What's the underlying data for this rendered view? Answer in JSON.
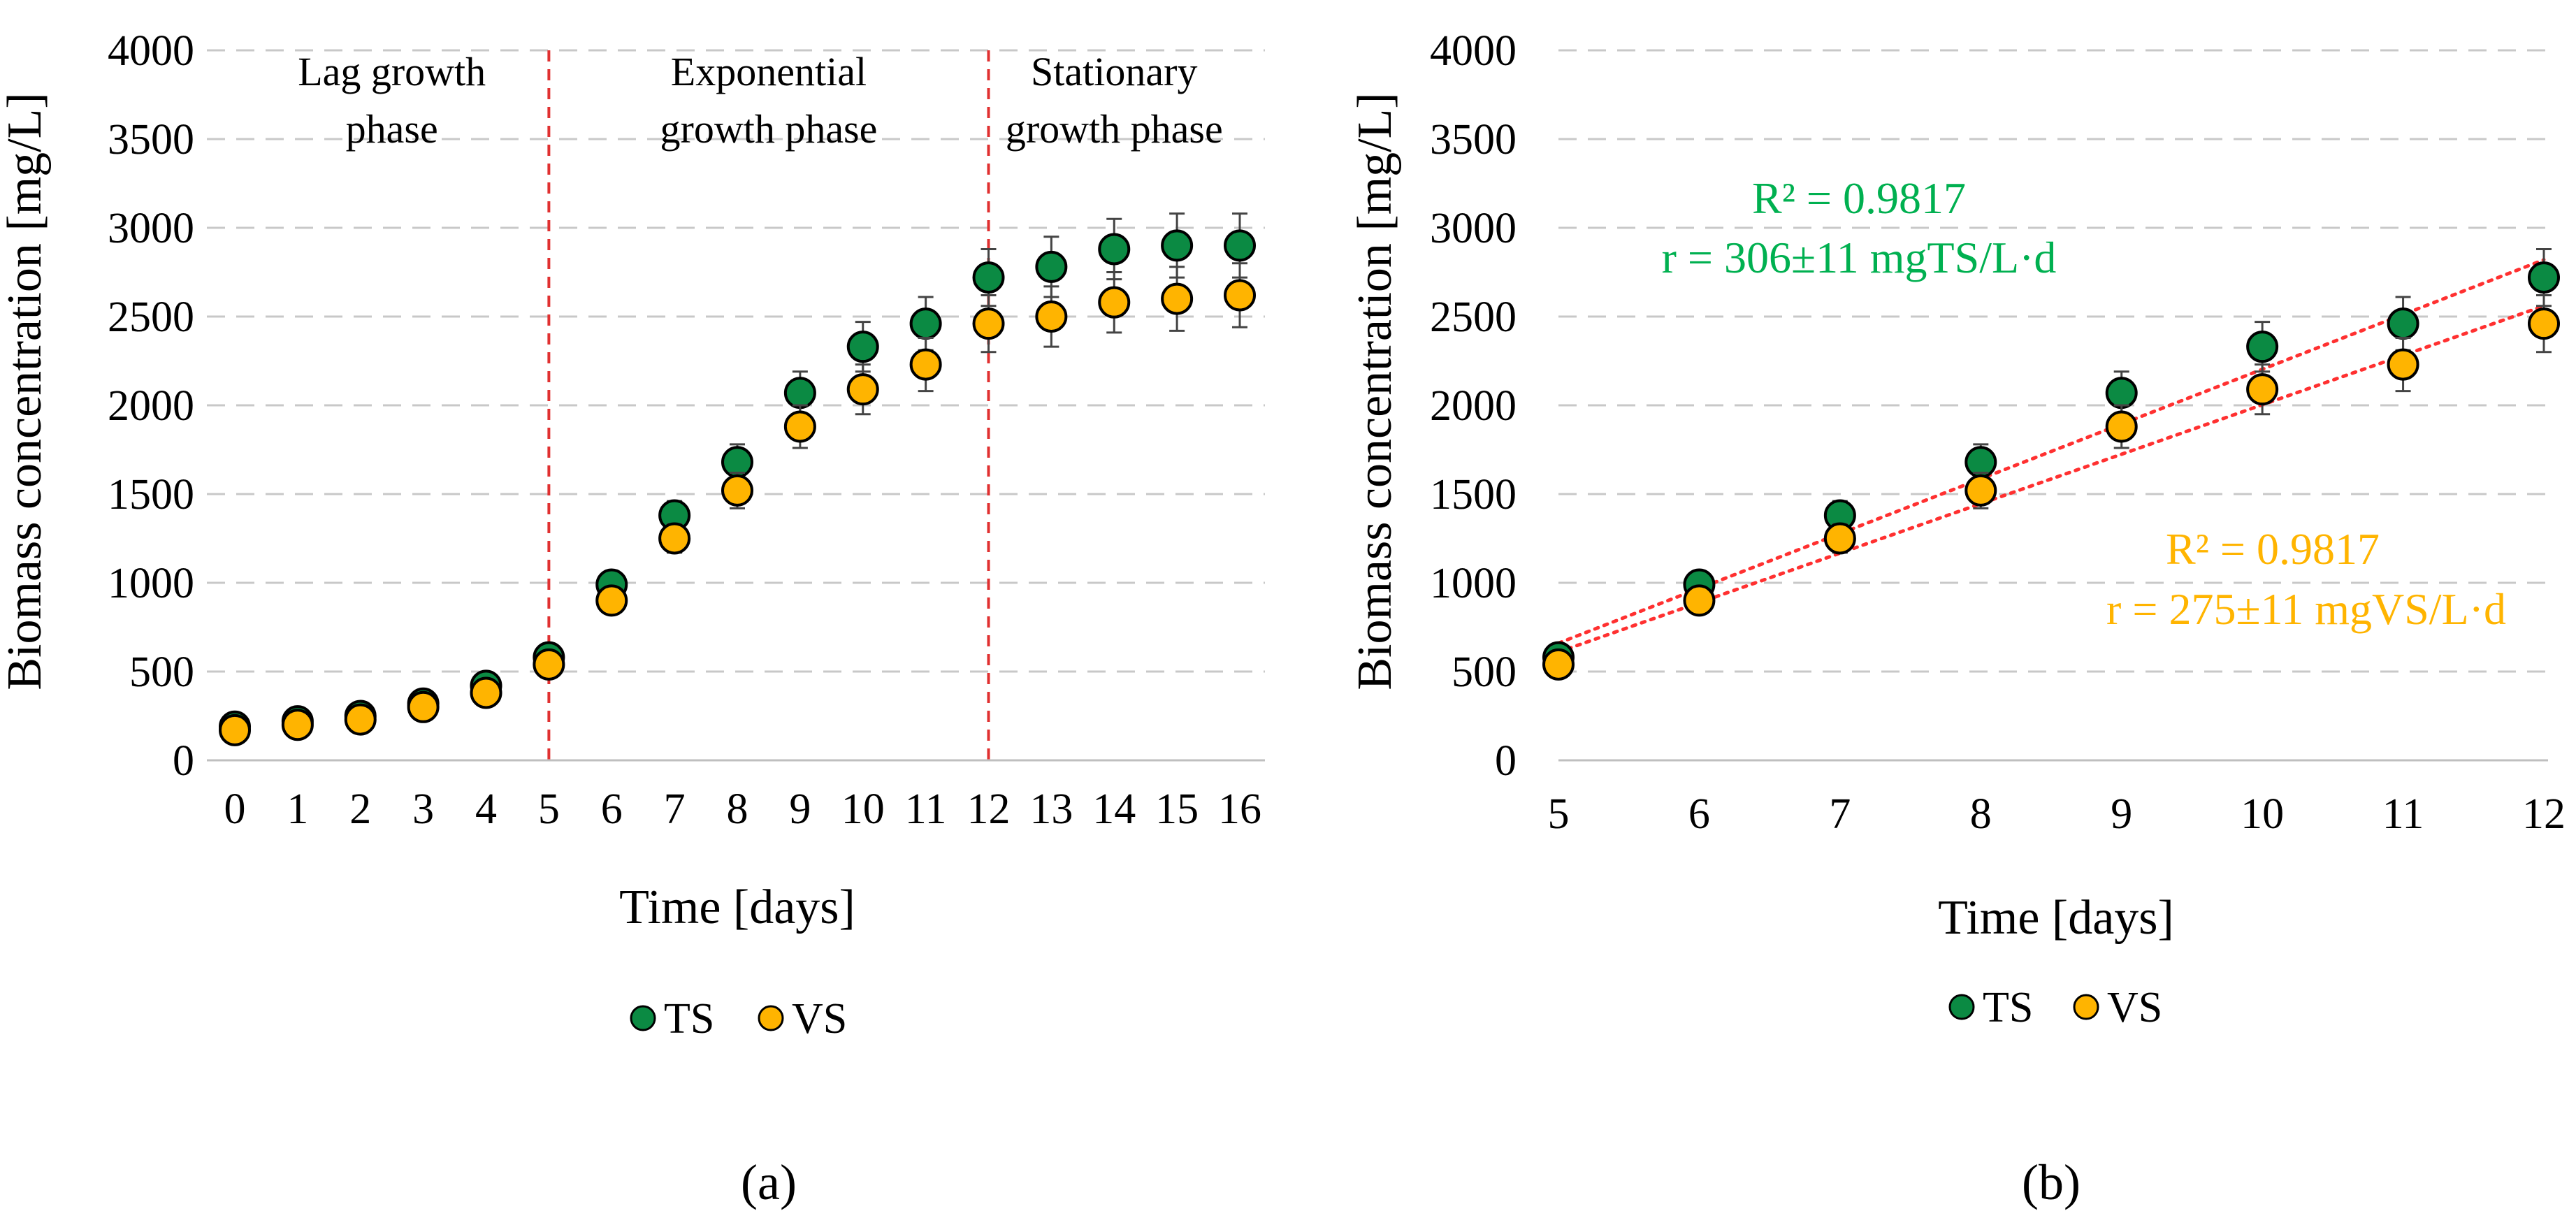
{
  "colors": {
    "ts": "#0b8a43",
    "vs": "#ffb400",
    "marker_edge": "#000000",
    "grid": "#c8c8c8",
    "phase_line": "#e03030",
    "trend_line": "#ff3030",
    "annot_ts": "#00b050",
    "annot_vs": "#ffb400"
  },
  "chart_data": [
    {
      "type": "scatter",
      "panel_caption": "(a)",
      "xlabel": "Time [days]",
      "ylabel": "Biomass concentration [mg/L]",
      "xlim": [
        0,
        16
      ],
      "ylim": [
        0,
        4000
      ],
      "x_ticks": [
        "0",
        "1",
        "2",
        "3",
        "4",
        "5",
        "6",
        "7",
        "8",
        "9",
        "10",
        "11",
        "12",
        "13",
        "14",
        "15",
        "16"
      ],
      "y_ticks": [
        "0",
        "500",
        "1000",
        "1500",
        "2000",
        "2500",
        "3000",
        "3500",
        "4000"
      ],
      "grid": true,
      "legend": [
        "TS",
        "VS"
      ],
      "legend_position": "bottom",
      "phase_boundaries": [
        5,
        12
      ],
      "phase_labels": [
        {
          "x": 2.5,
          "lines": [
            "Lag growth",
            "phase"
          ]
        },
        {
          "x": 8.5,
          "lines": [
            "Exponential",
            "growth phase"
          ]
        },
        {
          "x": 14.0,
          "lines": [
            "Stationary",
            "growth phase"
          ]
        }
      ],
      "series": [
        {
          "name": "TS",
          "x": [
            0,
            1,
            2,
            3,
            4,
            5,
            6,
            7,
            8,
            9,
            10,
            11,
            12,
            13,
            14,
            15,
            16
          ],
          "y": [
            190,
            220,
            250,
            320,
            420,
            580,
            990,
            1380,
            1680,
            2070,
            2330,
            2460,
            2720,
            2780,
            2880,
            2900,
            2900
          ],
          "error": [
            30,
            30,
            30,
            40,
            40,
            50,
            60,
            80,
            100,
            120,
            140,
            150,
            160,
            170,
            170,
            180,
            180
          ]
        },
        {
          "name": "VS",
          "x": [
            0,
            1,
            2,
            3,
            4,
            5,
            6,
            7,
            8,
            9,
            10,
            11,
            12,
            13,
            14,
            15,
            16
          ],
          "y": [
            170,
            200,
            230,
            300,
            380,
            540,
            900,
            1250,
            1520,
            1880,
            2090,
            2230,
            2460,
            2500,
            2580,
            2600,
            2620
          ],
          "error": [
            30,
            30,
            30,
            40,
            40,
            50,
            60,
            80,
            100,
            120,
            140,
            150,
            160,
            170,
            170,
            180,
            180
          ]
        }
      ]
    },
    {
      "type": "scatter",
      "panel_caption": "(b)",
      "xlabel": "Time [days]",
      "ylabel": "Biomass concentration [mg/L]",
      "xlim": [
        5,
        12
      ],
      "ylim": [
        0,
        4000
      ],
      "x_ticks": [
        "5",
        "6",
        "7",
        "8",
        "9",
        "10",
        "11",
        "12"
      ],
      "y_ticks": [
        "0",
        "500",
        "1000",
        "1500",
        "2000",
        "2500",
        "3000",
        "3500",
        "4000"
      ],
      "grid": true,
      "legend": [
        "TS",
        "VS"
      ],
      "legend_position": "bottom",
      "series": [
        {
          "name": "TS",
          "x": [
            5,
            6,
            7,
            8,
            9,
            10,
            11,
            12
          ],
          "y": [
            580,
            990,
            1380,
            1680,
            2070,
            2330,
            2460,
            2720
          ],
          "error": [
            50,
            60,
            80,
            100,
            120,
            140,
            150,
            160
          ],
          "trendline": {
            "x": [
              5,
              12
            ],
            "y": [
              660,
              2820
            ]
          }
        },
        {
          "name": "VS",
          "x": [
            5,
            6,
            7,
            8,
            9,
            10,
            11,
            12
          ],
          "y": [
            540,
            900,
            1250,
            1520,
            1880,
            2090,
            2230,
            2460
          ],
          "error": [
            50,
            60,
            80,
            100,
            120,
            140,
            150,
            160
          ],
          "trendline": {
            "x": [
              5,
              12
            ],
            "y": [
              610,
              2560
            ]
          }
        }
      ],
      "annotations": [
        {
          "series": "TS",
          "r2": "R² = 0.9817",
          "rate": "r = 306±11 mgTS/L·d"
        },
        {
          "series": "VS",
          "r2": "R² = 0.9817",
          "rate": "r = 275±11 mgVS/L·d"
        }
      ]
    }
  ]
}
